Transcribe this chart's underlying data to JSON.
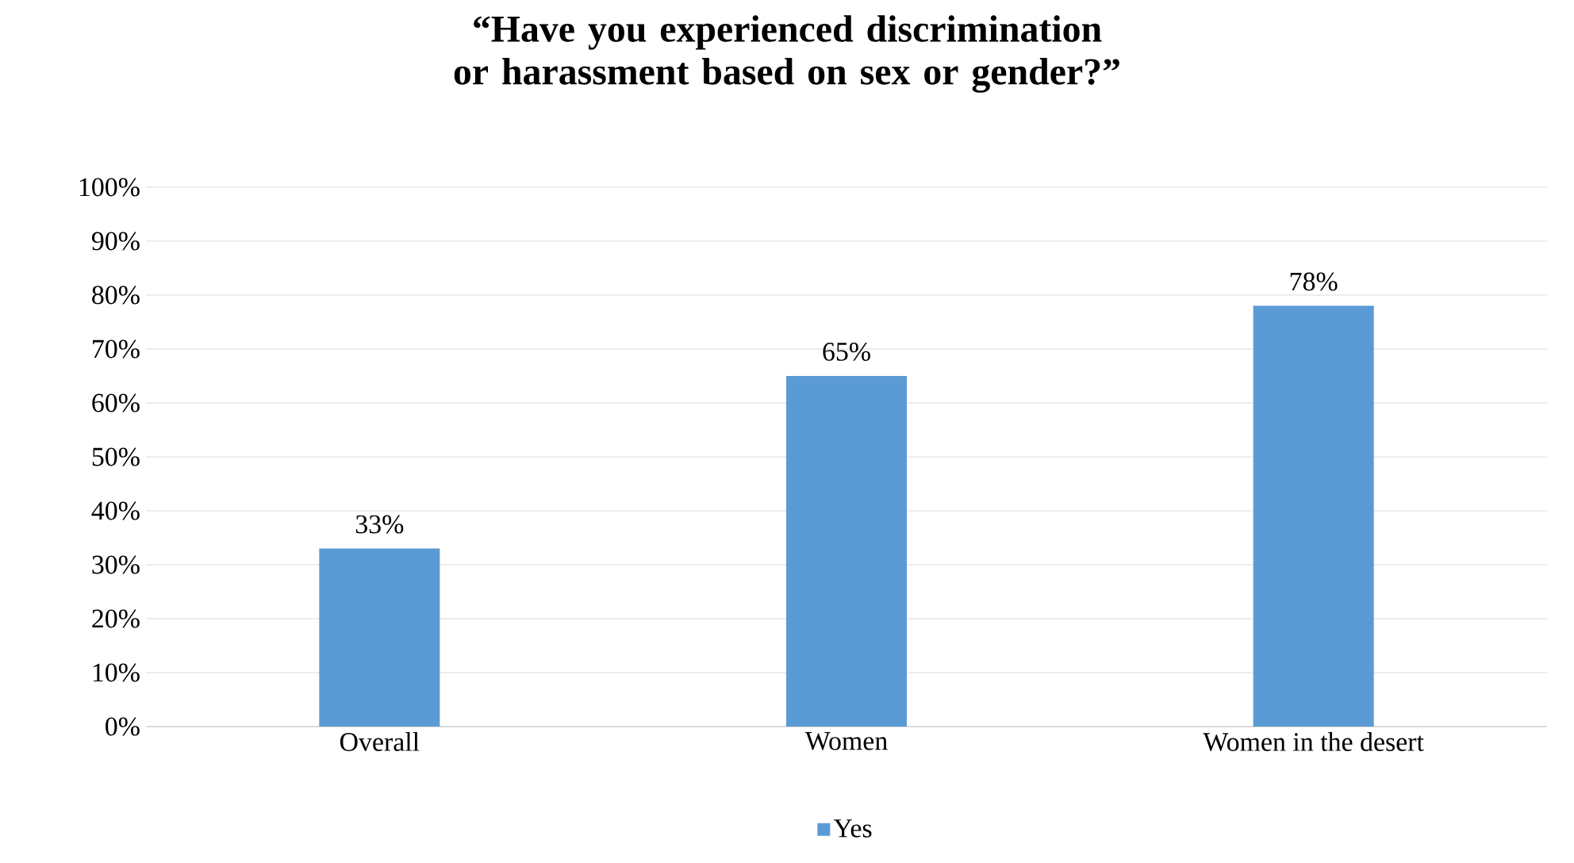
{
  "chart_data": {
    "type": "bar",
    "title": "“Have you experienced discrimination or harassment based on sex or gender?”",
    "categories": [
      "Overall",
      "Women",
      "Women in the desert"
    ],
    "series": [
      {
        "name": "Yes",
        "color": "#5b9bd5",
        "values": [
          33,
          65,
          78
        ],
        "value_labels": [
          "33%",
          "65%",
          "78%"
        ]
      }
    ],
    "ylim": [
      0,
      100
    ],
    "yticks": [
      {
        "value": 0,
        "label": "0%"
      },
      {
        "value": 10,
        "label": "10%"
      },
      {
        "value": 20,
        "label": "20%"
      },
      {
        "value": 30,
        "label": "30%"
      },
      {
        "value": 40,
        "label": "40%"
      },
      {
        "value": 50,
        "label": "50%"
      },
      {
        "value": 60,
        "label": "60%"
      },
      {
        "value": 70,
        "label": "70%"
      },
      {
        "value": 80,
        "label": "80%"
      },
      {
        "value": 90,
        "label": "90%"
      },
      {
        "value": 100,
        "label": "100%"
      }
    ],
    "grid": "y",
    "legend": "bottom"
  }
}
